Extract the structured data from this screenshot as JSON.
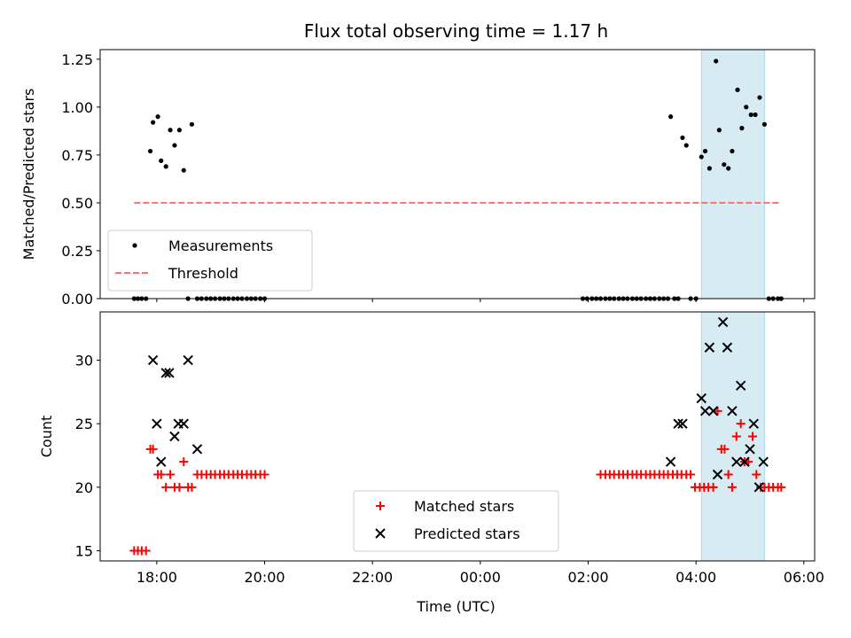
{
  "chart_data": {
    "title": "Flux total observing time = 1.17 h",
    "xlabel": "Time (UTC)",
    "x_ticks": [
      "18:00",
      "20:00",
      "22:00",
      "00:00",
      "02:00",
      "04:00",
      "06:00"
    ],
    "x_tick_hours": [
      18,
      20,
      22,
      24,
      26,
      28,
      30
    ],
    "xlim_hours": [
      16.95,
      30.2
    ],
    "x_units": "hours since 00:00 on first day (times after midnight use 24+)",
    "highlight_span_hours": [
      28.1,
      29.27
    ],
    "highlight_color": "#add8e6",
    "panels": [
      {
        "type": "scatter",
        "ylabel": "Matched/Predicted stars",
        "ylim": [
          0,
          1.3
        ],
        "yticks": [
          "0.00",
          "0.25",
          "0.50",
          "0.75",
          "1.00",
          "1.25"
        ],
        "ytick_values": [
          0,
          0.25,
          0.5,
          0.75,
          1.0,
          1.25
        ],
        "legend_position": "lower-left",
        "series": [
          {
            "name": "Measurements",
            "marker": "dot",
            "color": "#000000",
            "x": [
              17.58,
              17.65,
              17.72,
              17.8,
              17.88,
              17.93,
              18.02,
              18.08,
              18.17,
              18.25,
              18.33,
              18.42,
              18.5,
              18.58,
              18.65,
              18.75,
              18.83,
              18.92,
              19.0,
              19.08,
              19.17,
              19.25,
              19.33,
              19.42,
              19.5,
              19.58,
              19.67,
              19.75,
              19.83,
              19.92,
              20.0,
              25.9,
              25.98,
              26.07,
              26.15,
              26.23,
              26.32,
              26.4,
              26.48,
              26.57,
              26.65,
              26.73,
              26.82,
              26.9,
              26.98,
              27.07,
              27.15,
              27.23,
              27.32,
              27.4,
              27.48,
              27.53,
              27.6,
              27.67,
              27.75,
              27.82,
              27.9,
              28.0,
              28.1,
              28.17,
              28.25,
              28.37,
              28.43,
              28.52,
              28.6,
              28.67,
              28.77,
              28.85,
              28.93,
              29.02,
              29.1,
              29.18,
              29.27,
              29.35,
              29.43,
              29.52,
              29.58
            ],
            "y": [
              0,
              0,
              0,
              0,
              0.77,
              0.92,
              0.95,
              0.72,
              0.69,
              0.88,
              0.8,
              0.88,
              0.67,
              0,
              0.91,
              0,
              0,
              0,
              0,
              0,
              0,
              0,
              0,
              0,
              0,
              0,
              0,
              0,
              0,
              0,
              0,
              0,
              0,
              0,
              0,
              0,
              0,
              0,
              0,
              0,
              0,
              0,
              0,
              0,
              0,
              0,
              0,
              0,
              0,
              0,
              0,
              0.95,
              0,
              0,
              0.84,
              0.8,
              0,
              0,
              0.74,
              0.77,
              0.68,
              1.24,
              0.88,
              0.7,
              0.68,
              0.77,
              1.09,
              0.89,
              1.0,
              0.96,
              0.96,
              1.05,
              0.91,
              0,
              0,
              0,
              0
            ]
          },
          {
            "name": "Threshold",
            "type": "line",
            "style": "dashed",
            "color": "#ff6f6f",
            "x": [
              17.58,
              29.58
            ],
            "y": [
              0.5,
              0.5
            ]
          }
        ]
      },
      {
        "type": "scatter",
        "ylabel": "Count",
        "ylim": [
          14.2,
          33.8
        ],
        "yticks": [
          "15",
          "20",
          "25",
          "30"
        ],
        "ytick_values": [
          15,
          20,
          25,
          30
        ],
        "legend_position": "lower-center",
        "series": [
          {
            "name": "Matched stars",
            "marker": "plus",
            "color": "#ff0000",
            "x": [
              17.58,
              17.65,
              17.72,
              17.8,
              17.88,
              17.93,
              18.02,
              18.08,
              18.17,
              18.25,
              18.33,
              18.42,
              18.5,
              18.58,
              18.65,
              18.75,
              18.83,
              18.92,
              19.0,
              19.08,
              19.17,
              19.25,
              19.33,
              19.42,
              19.5,
              19.58,
              19.67,
              19.75,
              19.83,
              19.92,
              20.0,
              26.23,
              26.32,
              26.4,
              26.48,
              26.57,
              26.65,
              26.73,
              26.82,
              26.9,
              26.98,
              27.07,
              27.15,
              27.23,
              27.32,
              27.4,
              27.48,
              27.57,
              27.65,
              27.73,
              27.82,
              27.9,
              27.98,
              28.07,
              28.15,
              28.23,
              28.32,
              28.4,
              28.47,
              28.53,
              28.6,
              28.67,
              28.75,
              28.83,
              28.9,
              28.97,
              29.05,
              29.12,
              29.2,
              29.27,
              29.35,
              29.43,
              29.52,
              29.58
            ],
            "y": [
              15,
              15,
              15,
              15,
              23,
              23,
              21,
              21,
              20,
              21,
              20,
              20,
              22,
              20,
              20,
              21,
              21,
              21,
              21,
              21,
              21,
              21,
              21,
              21,
              21,
              21,
              21,
              21,
              21,
              21,
              21,
              21,
              21,
              21,
              21,
              21,
              21,
              21,
              21,
              21,
              21,
              21,
              21,
              21,
              21,
              21,
              21,
              21,
              21,
              21,
              21,
              21,
              20,
              20,
              20,
              20,
              20,
              26,
              23,
              23,
              21,
              20,
              24,
              25,
              22,
              22,
              24,
              21,
              20,
              20,
              20,
              20,
              20,
              20
            ]
          },
          {
            "name": "Predicted stars",
            "marker": "x",
            "color": "#000000",
            "x": [
              17.93,
              18.0,
              18.08,
              18.17,
              18.23,
              18.33,
              18.4,
              18.5,
              18.58,
              18.75,
              27.53,
              27.67,
              27.75,
              28.1,
              28.17,
              28.25,
              28.32,
              28.4,
              28.5,
              28.58,
              28.67,
              28.75,
              28.83,
              28.9,
              29.0,
              29.07,
              29.17,
              29.25
            ],
            "y": [
              30,
              25,
              22,
              29,
              29,
              24,
              25,
              25,
              30,
              23,
              22,
              25,
              25,
              27,
              26,
              31,
              26,
              21,
              33,
              31,
              26,
              22,
              28,
              22,
              23,
              25,
              20,
              22
            ]
          }
        ]
      }
    ]
  }
}
